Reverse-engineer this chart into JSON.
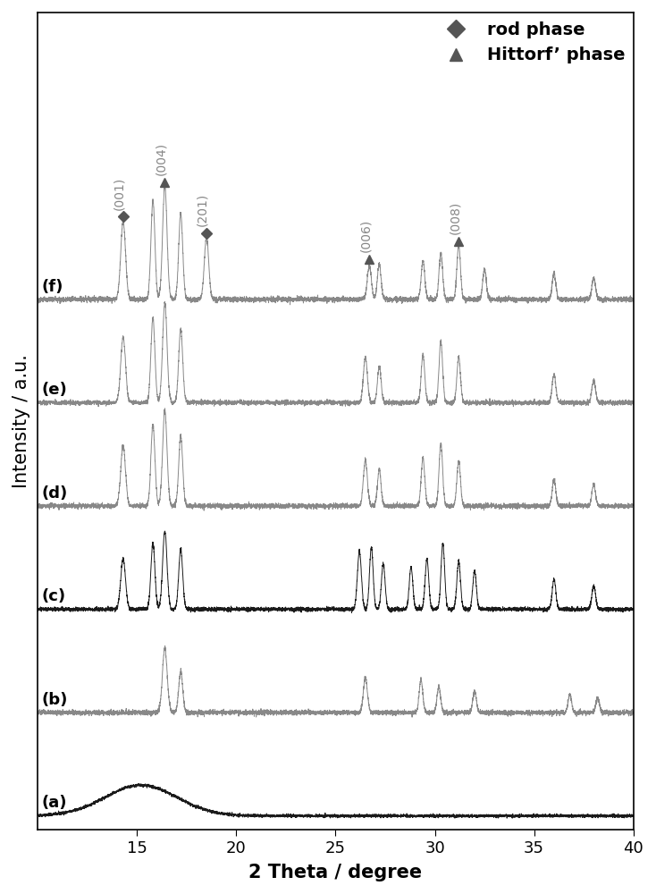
{
  "xlabel": "2 Theta / degree",
  "ylabel": "Intensity / a.u.",
  "xlim": [
    10,
    40
  ],
  "x_ticks": [
    15,
    20,
    25,
    30,
    35,
    40
  ],
  "curve_labels": [
    "(a)",
    "(b)",
    "(c)",
    "(d)",
    "(e)",
    "(f)"
  ],
  "curve_colors_a": "#1a1a1a",
  "curve_colors_b": "#888888",
  "curve_colors_c": "#1a1a1a",
  "curve_colors_d": "#888888",
  "curve_colors_e": "#888888",
  "curve_colors_f": "#888888",
  "ann_color": "#888888",
  "marker_color": "#555555",
  "legend_fontsize": 14,
  "axis_fontsize": 15,
  "tick_fontsize": 13,
  "label_fontsize": 13
}
